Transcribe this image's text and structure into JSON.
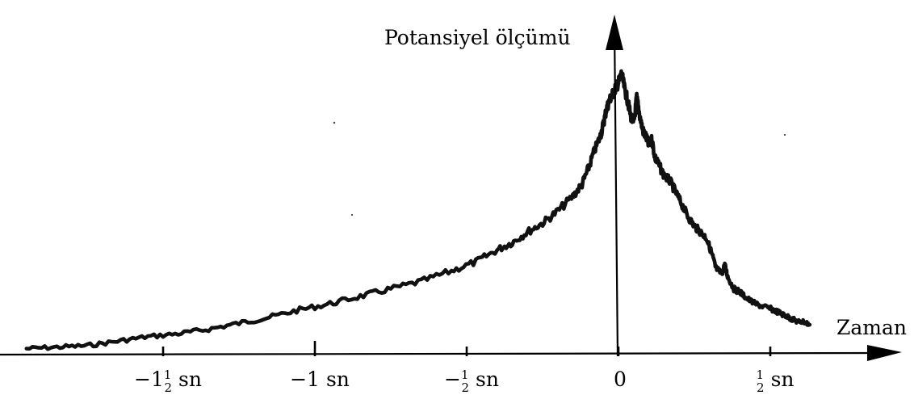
{
  "chart_data": {
    "type": "line",
    "title": "",
    "xlabel": "Zaman",
    "ylabel": "Potansiyel ölçümü",
    "xlim": [
      -2.0,
      0.7
    ],
    "ylim": [
      0,
      100
    ],
    "grid": false,
    "x_ticks": [
      {
        "value": -1.5,
        "whole": "−1",
        "frac_num": "1",
        "frac_den": "2",
        "unit": "sn"
      },
      {
        "value": -1.0,
        "whole": "−1",
        "frac_num": "",
        "frac_den": "",
        "unit": "sn"
      },
      {
        "value": -0.5,
        "whole": "−",
        "frac_num": "1",
        "frac_den": "2",
        "unit": "sn"
      },
      {
        "value": 0.0,
        "whole": "0",
        "frac_num": "",
        "frac_den": "",
        "unit": ""
      },
      {
        "value": 0.5,
        "whole": "",
        "frac_num": "1",
        "frac_den": "2",
        "unit": "sn"
      }
    ],
    "series": [
      {
        "color": "#111111",
        "points": [
          [
            -1.95,
            2
          ],
          [
            -1.85,
            2.5
          ],
          [
            -1.75,
            3
          ],
          [
            -1.65,
            4.5
          ],
          [
            -1.55,
            6
          ],
          [
            -1.45,
            7
          ],
          [
            -1.35,
            8.5
          ],
          [
            -1.25,
            10.5
          ],
          [
            -1.15,
            12.5
          ],
          [
            -1.05,
            15
          ],
          [
            -0.95,
            17
          ],
          [
            -0.85,
            19.5
          ],
          [
            -0.75,
            22
          ],
          [
            -0.65,
            24.5
          ],
          [
            -0.55,
            28
          ],
          [
            -0.47,
            31
          ],
          [
            -0.4,
            35
          ],
          [
            -0.35,
            37.5
          ],
          [
            -0.3,
            41
          ],
          [
            -0.25,
            44
          ],
          [
            -0.2,
            48
          ],
          [
            -0.15,
            53
          ],
          [
            -0.12,
            57
          ],
          [
            -0.1,
            62
          ],
          [
            -0.08,
            68
          ],
          [
            -0.06,
            73
          ],
          [
            -0.05,
            77
          ],
          [
            -0.04,
            82
          ],
          [
            -0.03,
            85
          ],
          [
            -0.02,
            87
          ],
          [
            -0.01,
            89
          ],
          [
            0.0,
            91
          ],
          [
            0.01,
            94
          ],
          [
            0.02,
            89
          ],
          [
            0.03,
            85
          ],
          [
            0.04,
            80
          ],
          [
            0.05,
            77
          ],
          [
            0.06,
            86
          ],
          [
            0.07,
            80
          ],
          [
            0.08,
            75
          ],
          [
            0.09,
            73
          ],
          [
            0.1,
            70
          ],
          [
            0.11,
            72
          ],
          [
            0.12,
            66
          ],
          [
            0.13,
            64
          ],
          [
            0.15,
            60
          ],
          [
            0.17,
            58
          ],
          [
            0.19,
            54
          ],
          [
            0.21,
            50
          ],
          [
            0.23,
            46
          ],
          [
            0.25,
            43
          ],
          [
            0.27,
            41
          ],
          [
            0.29,
            39
          ],
          [
            0.31,
            33
          ],
          [
            0.32,
            29
          ],
          [
            0.34,
            27
          ],
          [
            0.35,
            30
          ],
          [
            0.36,
            26
          ],
          [
            0.38,
            22
          ],
          [
            0.4,
            21
          ],
          [
            0.42,
            19
          ],
          [
            0.45,
            17
          ],
          [
            0.48,
            16
          ],
          [
            0.51,
            15
          ],
          [
            0.53,
            14
          ],
          [
            0.55,
            13
          ],
          [
            0.57,
            12
          ],
          [
            0.59,
            11
          ],
          [
            0.61,
            11
          ],
          [
            0.63,
            10
          ]
        ]
      }
    ]
  }
}
